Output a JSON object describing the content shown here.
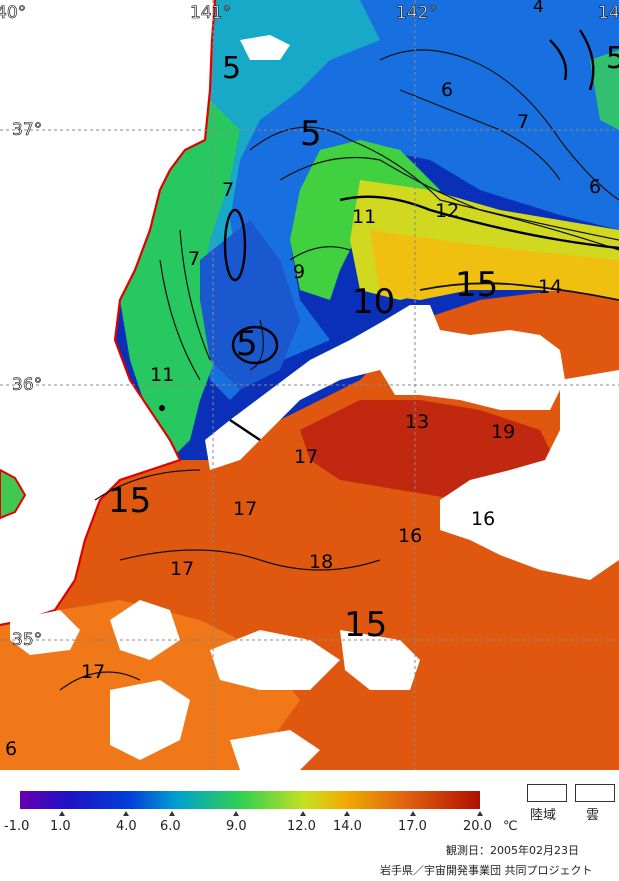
{
  "map": {
    "lon_labels": [
      "40°",
      "141°",
      "142°",
      "14"
    ],
    "lat_labels": [
      "37°",
      "36°",
      "35°"
    ],
    "contour_labels": [
      {
        "text": "5"
      },
      {
        "text": "5"
      },
      {
        "text": "5"
      },
      {
        "text": "5"
      },
      {
        "text": "6"
      },
      {
        "text": "7"
      },
      {
        "text": "6"
      },
      {
        "text": "4"
      },
      {
        "text": "7"
      },
      {
        "text": "7"
      },
      {
        "text": "9"
      },
      {
        "text": "11"
      },
      {
        "text": "12"
      },
      {
        "text": "10"
      },
      {
        "text": "15"
      },
      {
        "text": "14"
      },
      {
        "text": "11"
      },
      {
        "text": "13"
      },
      {
        "text": "19"
      },
      {
        "text": "17"
      },
      {
        "text": "15"
      },
      {
        "text": "17"
      },
      {
        "text": "16"
      },
      {
        "text": "16"
      },
      {
        "text": "17"
      },
      {
        "text": "18"
      },
      {
        "text": "15"
      },
      {
        "text": "17"
      },
      {
        "text": "6"
      }
    ]
  },
  "legend": {
    "colors": [
      "#6a00b0",
      "#1010c8",
      "#0060e0",
      "#00b0c0",
      "#30d050",
      "#c8e020",
      "#f0c000",
      "#f07000",
      "#d03000",
      "#b01000"
    ],
    "ticks": [
      "-1.0",
      "1.0",
      "4.0",
      "6.0",
      "9.0",
      "12.0",
      "14.0",
      "17.0",
      "20.0"
    ],
    "unit": "℃",
    "land_label": "陸域",
    "cloud_label": "雲"
  },
  "footer": {
    "observation": "観測日：2005年02月23日",
    "credit": "岩手県／宇宙開発事業団  共同プロジェクト"
  }
}
